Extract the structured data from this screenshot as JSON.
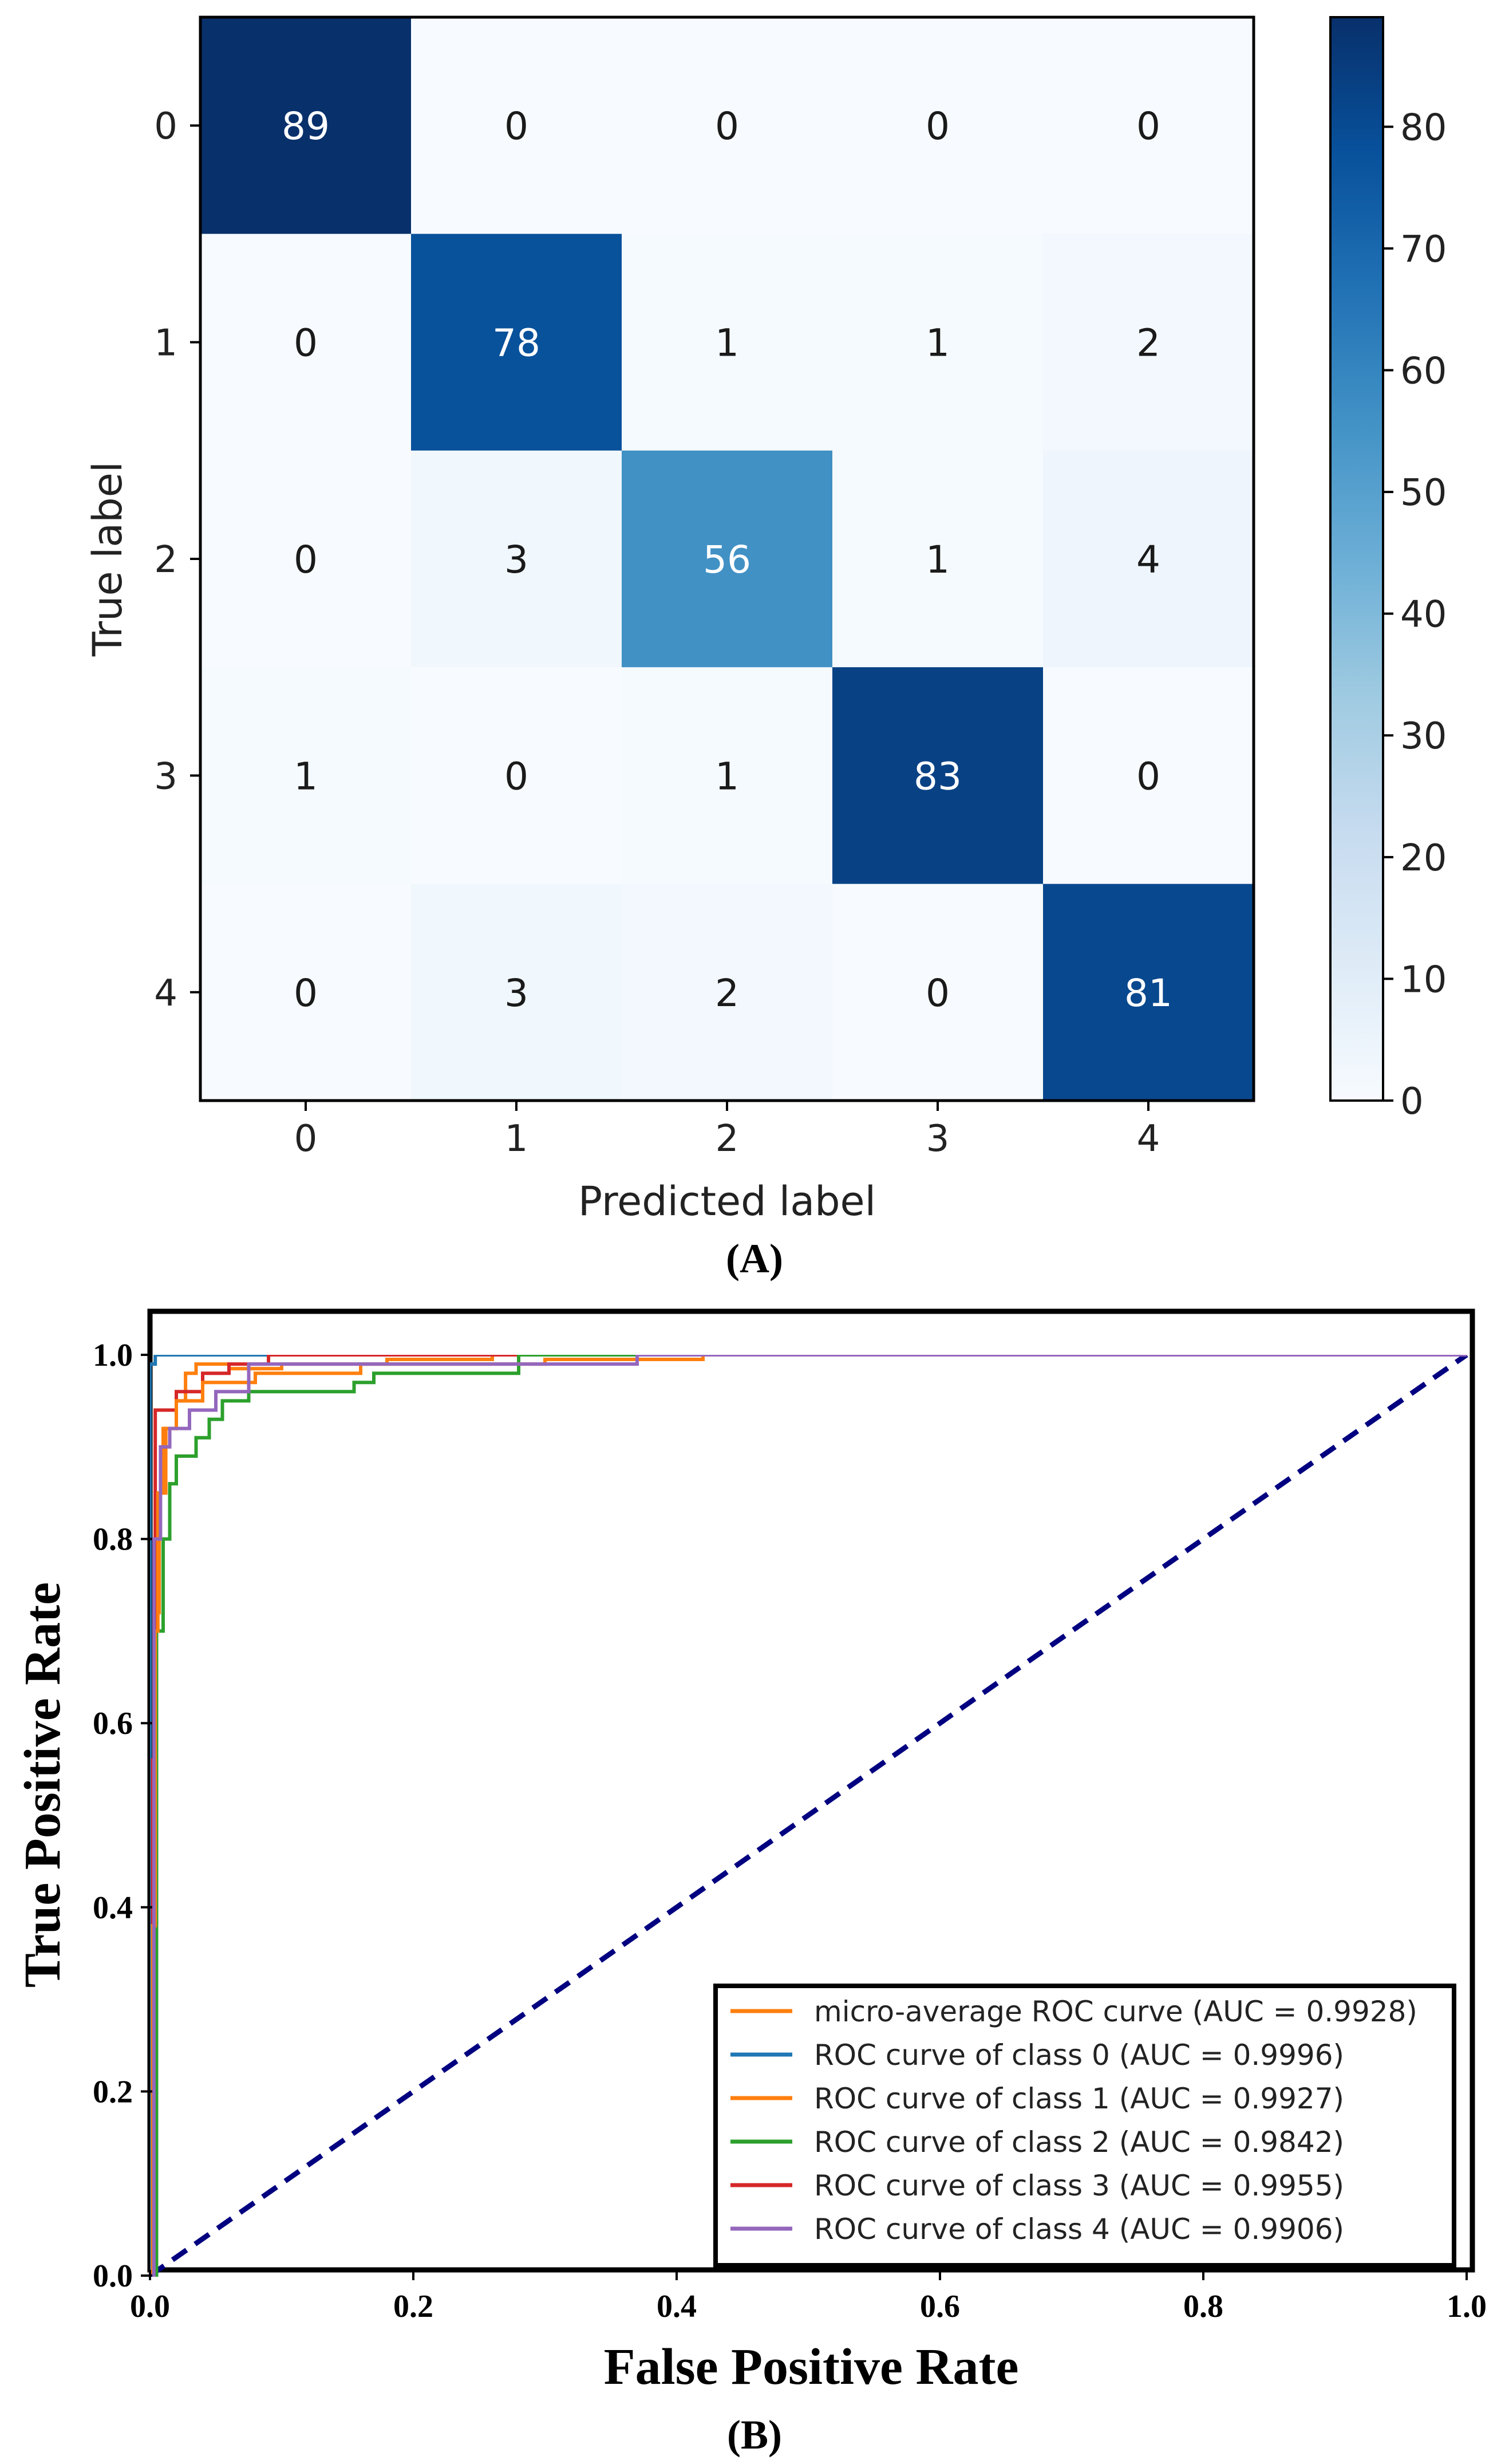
{
  "panel_a": {
    "label": "(A)",
    "chart_data": {
      "type": "heatmap",
      "title": "",
      "xlabel": "Predicted label",
      "ylabel": "True label",
      "x_categories": [
        "0",
        "1",
        "2",
        "3",
        "4"
      ],
      "y_categories": [
        "0",
        "1",
        "2",
        "3",
        "4"
      ],
      "matrix": [
        [
          89,
          0,
          0,
          0,
          0
        ],
        [
          0,
          78,
          1,
          1,
          2
        ],
        [
          0,
          3,
          56,
          1,
          4
        ],
        [
          1,
          0,
          1,
          83,
          0
        ],
        [
          0,
          3,
          2,
          0,
          81
        ]
      ],
      "colormap": "Blues",
      "vmin": 0,
      "vmax": 89,
      "colorbar_ticks": [
        0,
        10,
        20,
        30,
        40,
        50,
        60,
        70,
        80
      ],
      "text_color_threshold": 44.5
    }
  },
  "panel_b": {
    "label": "(B)",
    "chart_data": {
      "type": "line",
      "title": "",
      "xlabel": "False Positive Rate",
      "ylabel": "True Positive Rate",
      "xlim": [
        0,
        1
      ],
      "ylim": [
        0,
        1
      ],
      "xticks": [
        "0.0",
        "0.2",
        "0.4",
        "0.6",
        "0.8",
        "1.0"
      ],
      "yticks": [
        "0.0",
        "0.2",
        "0.4",
        "0.6",
        "0.8",
        "1.0"
      ],
      "legend_position": "lower-right",
      "diagonal": {
        "x": [
          0,
          1
        ],
        "y": [
          0,
          1
        ],
        "color": "#000080",
        "style": "dashed"
      },
      "series": [
        {
          "name": "micro-average ROC curve (AUC = 0.9928)",
          "color": "#ff7f0e",
          "x": [
            0,
            0.002,
            0.002,
            0.004,
            0.004,
            0.006,
            0.006,
            0.01,
            0.01,
            0.02,
            0.02,
            0.04,
            0.04,
            0.08,
            0.08,
            0.16,
            0.16,
            0.3,
            0.3,
            0.42,
            0.42,
            1.0
          ],
          "y": [
            0,
            0,
            0.38,
            0.38,
            0.7,
            0.7,
            0.85,
            0.85,
            0.92,
            0.92,
            0.95,
            0.95,
            0.97,
            0.97,
            0.98,
            0.98,
            0.99,
            0.99,
            0.995,
            0.995,
            1.0,
            1.0
          ]
        },
        {
          "name": "ROC curve of class 0 (AUC = 0.9996)",
          "color": "#1f77b4",
          "x": [
            0,
            0.0,
            0.004,
            0.004,
            1.0
          ],
          "y": [
            0,
            0.99,
            0.99,
            1.0,
            1.0
          ]
        },
        {
          "name": "ROC curve of class 1 (AUC = 0.9927)",
          "color": "#ff7f0e",
          "x": [
            0,
            0.003,
            0.003,
            0.007,
            0.007,
            0.012,
            0.012,
            0.02,
            0.02,
            0.027,
            0.027,
            0.035,
            0.035,
            0.06,
            0.06,
            0.1,
            0.1,
            0.18,
            0.18,
            0.26,
            0.26,
            1.0
          ],
          "y": [
            0,
            0,
            0.72,
            0.72,
            0.85,
            0.85,
            0.92,
            0.92,
            0.95,
            0.95,
            0.98,
            0.98,
            0.99,
            0.99,
            0.985,
            0.985,
            0.99,
            0.99,
            0.995,
            0.995,
            1.0,
            1.0
          ]
        },
        {
          "name": "ROC curve of class 2 (AUC = 0.9842)",
          "color": "#2ca02c",
          "x": [
            0,
            0.005,
            0.005,
            0.01,
            0.01,
            0.015,
            0.015,
            0.02,
            0.02,
            0.035,
            0.035,
            0.045,
            0.045,
            0.055,
            0.055,
            0.075,
            0.075,
            0.155,
            0.155,
            0.17,
            0.17,
            0.28,
            0.28,
            1.0
          ],
          "y": [
            0,
            0,
            0.7,
            0.7,
            0.8,
            0.8,
            0.86,
            0.86,
            0.89,
            0.89,
            0.91,
            0.91,
            0.93,
            0.93,
            0.95,
            0.95,
            0.96,
            0.96,
            0.97,
            0.97,
            0.98,
            0.98,
            1.0,
            1.0
          ]
        },
        {
          "name": "ROC curve of class 3 (AUC = 0.9955)",
          "color": "#d62728",
          "x": [
            0,
            0.002,
            0.002,
            0.004,
            0.004,
            0.02,
            0.02,
            0.04,
            0.04,
            0.06,
            0.06,
            0.09,
            0.09,
            0.37,
            0.37,
            1.0
          ],
          "y": [
            0,
            0,
            0.56,
            0.56,
            0.94,
            0.94,
            0.96,
            0.96,
            0.98,
            0.98,
            0.99,
            0.99,
            1.0,
            1.0,
            1.0,
            1.0
          ],
          "end_x": 0.37
        },
        {
          "name": "ROC curve of class 4 (AUC = 0.9906)",
          "color": "#9467bd",
          "x": [
            0,
            0.003,
            0.003,
            0.008,
            0.008,
            0.015,
            0.015,
            0.03,
            0.03,
            0.05,
            0.05,
            0.075,
            0.075,
            0.37,
            0.37,
            1.0
          ],
          "y": [
            0,
            0,
            0.8,
            0.8,
            0.9,
            0.9,
            0.92,
            0.92,
            0.94,
            0.94,
            0.96,
            0.96,
            0.99,
            0.99,
            1.0,
            1.0
          ]
        }
      ]
    }
  }
}
